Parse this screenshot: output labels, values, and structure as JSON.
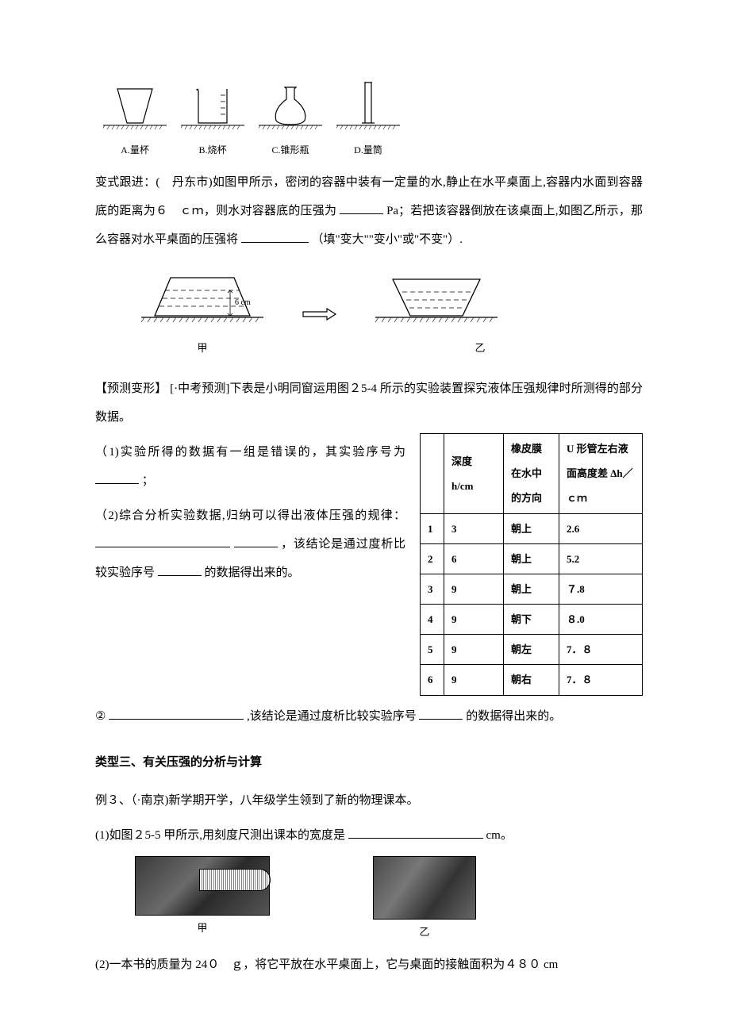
{
  "vessels": {
    "items": [
      {
        "label": "A.量杯"
      },
      {
        "label": "B.烧杯"
      },
      {
        "label": "C.锥形瓶"
      },
      {
        "label": "D.量筒"
      }
    ]
  },
  "q1": {
    "prefix": "变式跟进：(　丹东市)如图甲所示，密闭的容器中装有一定量的水,静止在水平桌面上,容器内水面到容器底的距离为６　ｃｍ，则水对容器底的压强为",
    "unit": "Pa；若把该容器倒放在该桌面上,如图乙所示，那么容器对水平桌面的压强将",
    "suffix": "（填\"变大\"\"变小\"或\"不变\"）."
  },
  "container_diagram": {
    "height_label": "6 cm",
    "left_label": "甲",
    "right_label": "乙"
  },
  "predict": {
    "intro": "【预测变形】  [·中考预测]下表是小明同窗运用图２5-4 所示的实验装置探究液体压强规律时所测得的部分数据。",
    "q1_prefix": "（1)实验所得的数据有一组是错误的，其实验序号为",
    "q1_suffix": "；",
    "q2_prefix": "（2)综合分析实验数据,归纳可以得出液体压强的规律：",
    "q2_mid": "，该结论是通过度析比较实验序号",
    "q2_suffix": "的数据得出来的。",
    "q3_prefix": "②",
    "q3_mid": ",该结论是通过度析比较实验序号",
    "q3_suffix": "的数据得出来的。"
  },
  "table": {
    "headers": {
      "seq": "",
      "depth": "深度 h/cm",
      "direction": "橡皮膜在水中的方向",
      "diff": "U 形管左右液面高度差 Δh／ｃｍ"
    },
    "rows": [
      {
        "seq": "1",
        "depth": "3",
        "direction": "朝上",
        "diff": "2.6"
      },
      {
        "seq": "2",
        "depth": "6",
        "direction": "朝上",
        "diff": "5.2"
      },
      {
        "seq": "3",
        "depth": "9",
        "direction": "朝上",
        "diff": "７.8"
      },
      {
        "seq": "4",
        "depth": "9",
        "direction": "朝下",
        "diff": "８.0"
      },
      {
        "seq": "5",
        "depth": "9",
        "direction": "朝左",
        "diff": "7．８"
      },
      {
        "seq": "6",
        "depth": "9",
        "direction": "朝右",
        "diff": "7．８"
      }
    ]
  },
  "section3": {
    "title": "类型三、有关压强的分析与计算",
    "ex_intro": "例３、（·南京)新学期开学，八年级学生领到了新的物理课本。",
    "q1_prefix": "(1)如图２5-5 甲所示,用刻度尺测出课本的宽度是",
    "q1_unit": "cm。",
    "photo_left": "甲",
    "photo_right": "乙",
    "q2": "(2)一本书的质量为 24０　ｇ，将它平放在水平桌面上，它与桌面的接触面积为４８０ cm"
  },
  "colors": {
    "text": "#000000",
    "bg": "#ffffff",
    "line": "#000000",
    "hatch": "#333333"
  }
}
